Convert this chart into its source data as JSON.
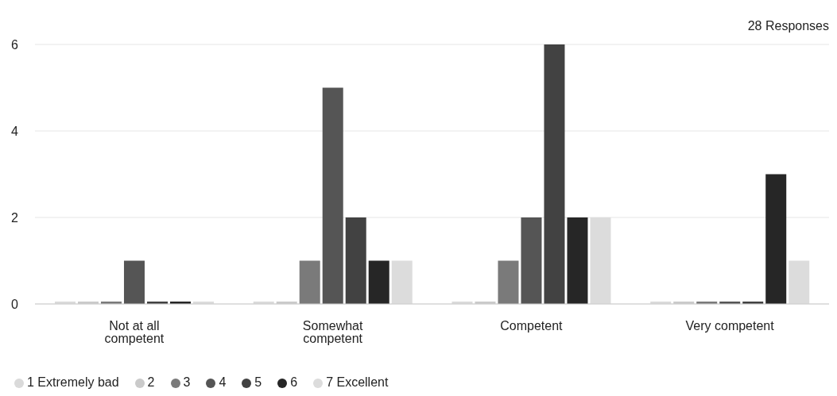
{
  "chart_data": {
    "type": "bar",
    "annotations": [
      "28 Responses"
    ],
    "categories": [
      "Not at all competent",
      "Somewhat competent",
      "Competent",
      "Very competent"
    ],
    "series": [
      {
        "name": "1 Extremely bad",
        "color": "#dadada",
        "values": [
          0,
          0,
          0,
          0
        ]
      },
      {
        "name": "2",
        "color": "#cacaca",
        "values": [
          0,
          0,
          0,
          0
        ]
      },
      {
        "name": "3",
        "color": "#7a7a7a",
        "values": [
          0,
          1,
          1,
          0
        ]
      },
      {
        "name": "4",
        "color": "#555555",
        "values": [
          1,
          5,
          2,
          0
        ]
      },
      {
        "name": "5",
        "color": "#424242",
        "values": [
          0,
          2,
          6,
          0
        ]
      },
      {
        "name": "6",
        "color": "#262626",
        "values": [
          0,
          1,
          2,
          3
        ]
      },
      {
        "name": "7 Excellent",
        "color": "#dcdcdc",
        "values": [
          0,
          1,
          2,
          1
        ]
      }
    ],
    "ylim": [
      0,
      6
    ],
    "yticks": [
      0,
      2,
      4,
      6
    ],
    "grid": "y",
    "legend": "bottom left"
  }
}
